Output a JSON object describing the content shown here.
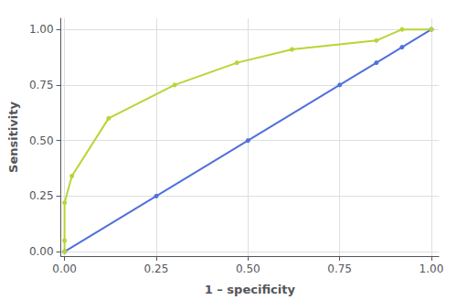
{
  "chart_data": {
    "type": "line",
    "xlabel": "1 – specificity",
    "ylabel": "Sensitivity",
    "marker": "circle",
    "series": [
      {
        "x": [
          0.0,
          0.25,
          0.5,
          0.75,
          0.85,
          0.92,
          1.0
        ],
        "values": [
          0.0,
          0.25,
          0.5,
          0.75,
          0.85,
          0.92,
          1.0
        ]
      },
      {
        "x": [
          0.0,
          0.0,
          0.0,
          0.02,
          0.12,
          0.3,
          0.47,
          0.62,
          0.85,
          0.92,
          1.0
        ],
        "values": [
          0.0,
          0.05,
          0.22,
          0.34,
          0.6,
          0.75,
          0.85,
          0.91,
          0.95,
          1.0,
          1.0
        ]
      }
    ],
    "xlim": [
      -0.01,
      1.02
    ],
    "ylim": [
      -0.02,
      1.05
    ],
    "xticks": [
      {
        "value": 0.0,
        "label": "0.00"
      },
      {
        "value": 0.25,
        "label": "0.25"
      },
      {
        "value": 0.5,
        "label": "0.50"
      },
      {
        "value": 0.75,
        "label": "0.75"
      },
      {
        "value": 1.0,
        "label": "1.00"
      }
    ],
    "yticks": [
      {
        "value": 0.0,
        "label": "0.00"
      },
      {
        "value": 0.25,
        "label": "0.25"
      },
      {
        "value": 0.5,
        "label": "0.50"
      },
      {
        "value": 0.75,
        "label": "0.75"
      },
      {
        "value": 1.0,
        "label": "1.00"
      }
    ],
    "grid": true
  }
}
